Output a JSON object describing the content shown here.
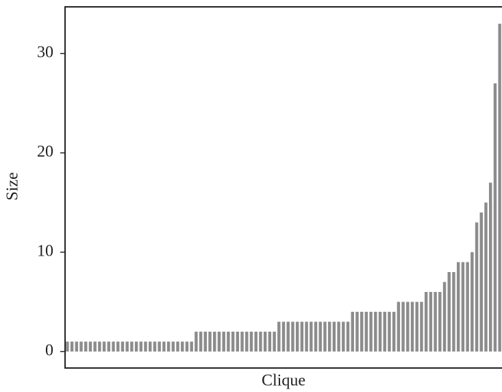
{
  "chart_data": {
    "type": "bar",
    "x_label": "Clique",
    "y_label": "Size",
    "values": [
      1,
      1,
      1,
      1,
      1,
      1,
      1,
      1,
      1,
      1,
      1,
      1,
      1,
      1,
      1,
      1,
      1,
      1,
      1,
      1,
      1,
      1,
      1,
      1,
      1,
      1,
      1,
      1,
      2,
      2,
      2,
      2,
      2,
      2,
      2,
      2,
      2,
      2,
      2,
      2,
      2,
      2,
      2,
      2,
      2,
      2,
      3,
      3,
      3,
      3,
      3,
      3,
      3,
      3,
      3,
      3,
      3,
      3,
      3,
      3,
      3,
      3,
      4,
      4,
      4,
      4,
      4,
      4,
      4,
      4,
      4,
      4,
      5,
      5,
      5,
      5,
      5,
      5,
      6,
      6,
      6,
      6,
      7,
      8,
      8,
      9,
      9,
      9,
      10,
      13,
      14,
      15,
      17,
      27,
      33
    ],
    "color": "#8c8c8c",
    "ylim": [
      -1.66,
      34.7
    ],
    "yticks": [
      0,
      10,
      20,
      30
    ]
  }
}
